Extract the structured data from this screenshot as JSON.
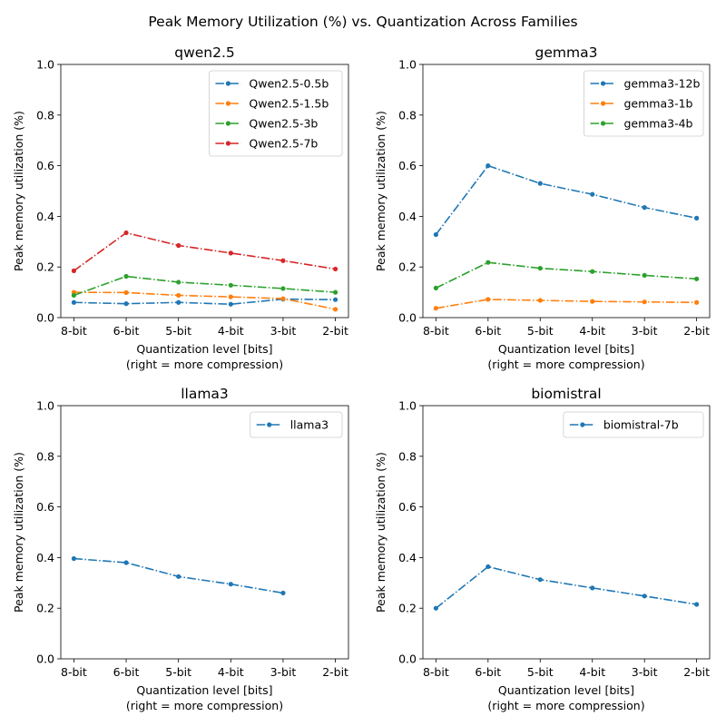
{
  "figure": {
    "suptitle": "Peak Memory Utilization (%) vs. Quantization Across Families"
  },
  "chart_data": [
    {
      "type": "line",
      "title": "qwen2.5",
      "xlabel": "Quantization level [bits]",
      "xlabel2": "(right = more compression)",
      "ylabel": "Peak memory utilization (%)",
      "ylim": [
        0,
        1
      ],
      "yticks": [
        "0.0",
        "0.2",
        "0.4",
        "0.6",
        "0.8",
        "1.0"
      ],
      "categories": [
        "8-bit",
        "6-bit",
        "5-bit",
        "4-bit",
        "3-bit",
        "2-bit"
      ],
      "legend_position": "top-right",
      "series": [
        {
          "name": "Qwen2.5-0.5b",
          "color": "#1f77b4",
          "values": [
            0.06,
            0.055,
            0.06,
            0.053,
            0.073,
            0.071
          ]
        },
        {
          "name": "Qwen2.5-1.5b",
          "color": "#ff7f0e",
          "values": [
            0.1,
            0.099,
            0.088,
            0.082,
            0.075,
            0.033
          ]
        },
        {
          "name": "Qwen2.5-3b",
          "color": "#2ca02c",
          "values": [
            0.088,
            0.163,
            0.14,
            0.128,
            0.115,
            0.1
          ]
        },
        {
          "name": "Qwen2.5-7b",
          "color": "#d62728",
          "values": [
            0.185,
            0.335,
            0.285,
            0.255,
            0.225,
            0.192
          ]
        }
      ]
    },
    {
      "type": "line",
      "title": "gemma3",
      "xlabel": "Quantization level [bits]",
      "xlabel2": "(right = more compression)",
      "ylabel": "Peak memory utilization (%)",
      "ylim": [
        0,
        1
      ],
      "yticks": [
        "0.0",
        "0.2",
        "0.4",
        "0.6",
        "0.8",
        "1.0"
      ],
      "categories": [
        "8-bit",
        "6-bit",
        "5-bit",
        "4-bit",
        "3-bit",
        "2-bit"
      ],
      "legend_position": "top-right",
      "series": [
        {
          "name": "gemma3-12b",
          "color": "#1f77b4",
          "values": [
            0.328,
            0.6,
            0.53,
            0.487,
            0.435,
            0.393
          ]
        },
        {
          "name": "gemma3-1b",
          "color": "#ff7f0e",
          "values": [
            0.037,
            0.072,
            0.068,
            0.064,
            0.062,
            0.06
          ]
        },
        {
          "name": "gemma3-4b",
          "color": "#2ca02c",
          "values": [
            0.117,
            0.218,
            0.195,
            0.182,
            0.167,
            0.153
          ]
        }
      ]
    },
    {
      "type": "line",
      "title": "llama3",
      "xlabel": "Quantization level [bits]",
      "xlabel2": "(right = more compression)",
      "ylabel": "Peak memory utilization (%)",
      "ylim": [
        0,
        1
      ],
      "yticks": [
        "0.0",
        "0.2",
        "0.4",
        "0.6",
        "0.8",
        "1.0"
      ],
      "categories": [
        "8-bit",
        "6-bit",
        "5-bit",
        "4-bit",
        "3-bit",
        "2-bit"
      ],
      "legend_position": "top-right",
      "series": [
        {
          "name": "llama3",
          "color": "#1f77b4",
          "values": [
            0.396,
            0.38,
            0.325,
            0.295,
            0.26,
            null
          ]
        }
      ]
    },
    {
      "type": "line",
      "title": "biomistral",
      "xlabel": "Quantization level [bits]",
      "xlabel2": "(right = more compression)",
      "ylabel": "Peak memory utilization (%)",
      "ylim": [
        0,
        1
      ],
      "yticks": [
        "0.0",
        "0.2",
        "0.4",
        "0.6",
        "0.8",
        "1.0"
      ],
      "categories": [
        "8-bit",
        "6-bit",
        "5-bit",
        "4-bit",
        "3-bit",
        "2-bit"
      ],
      "legend_position": "top-right",
      "series": [
        {
          "name": "biomistral-7b",
          "color": "#1f77b4",
          "values": [
            0.2,
            0.364,
            0.313,
            0.28,
            0.248,
            0.215
          ]
        }
      ]
    }
  ]
}
